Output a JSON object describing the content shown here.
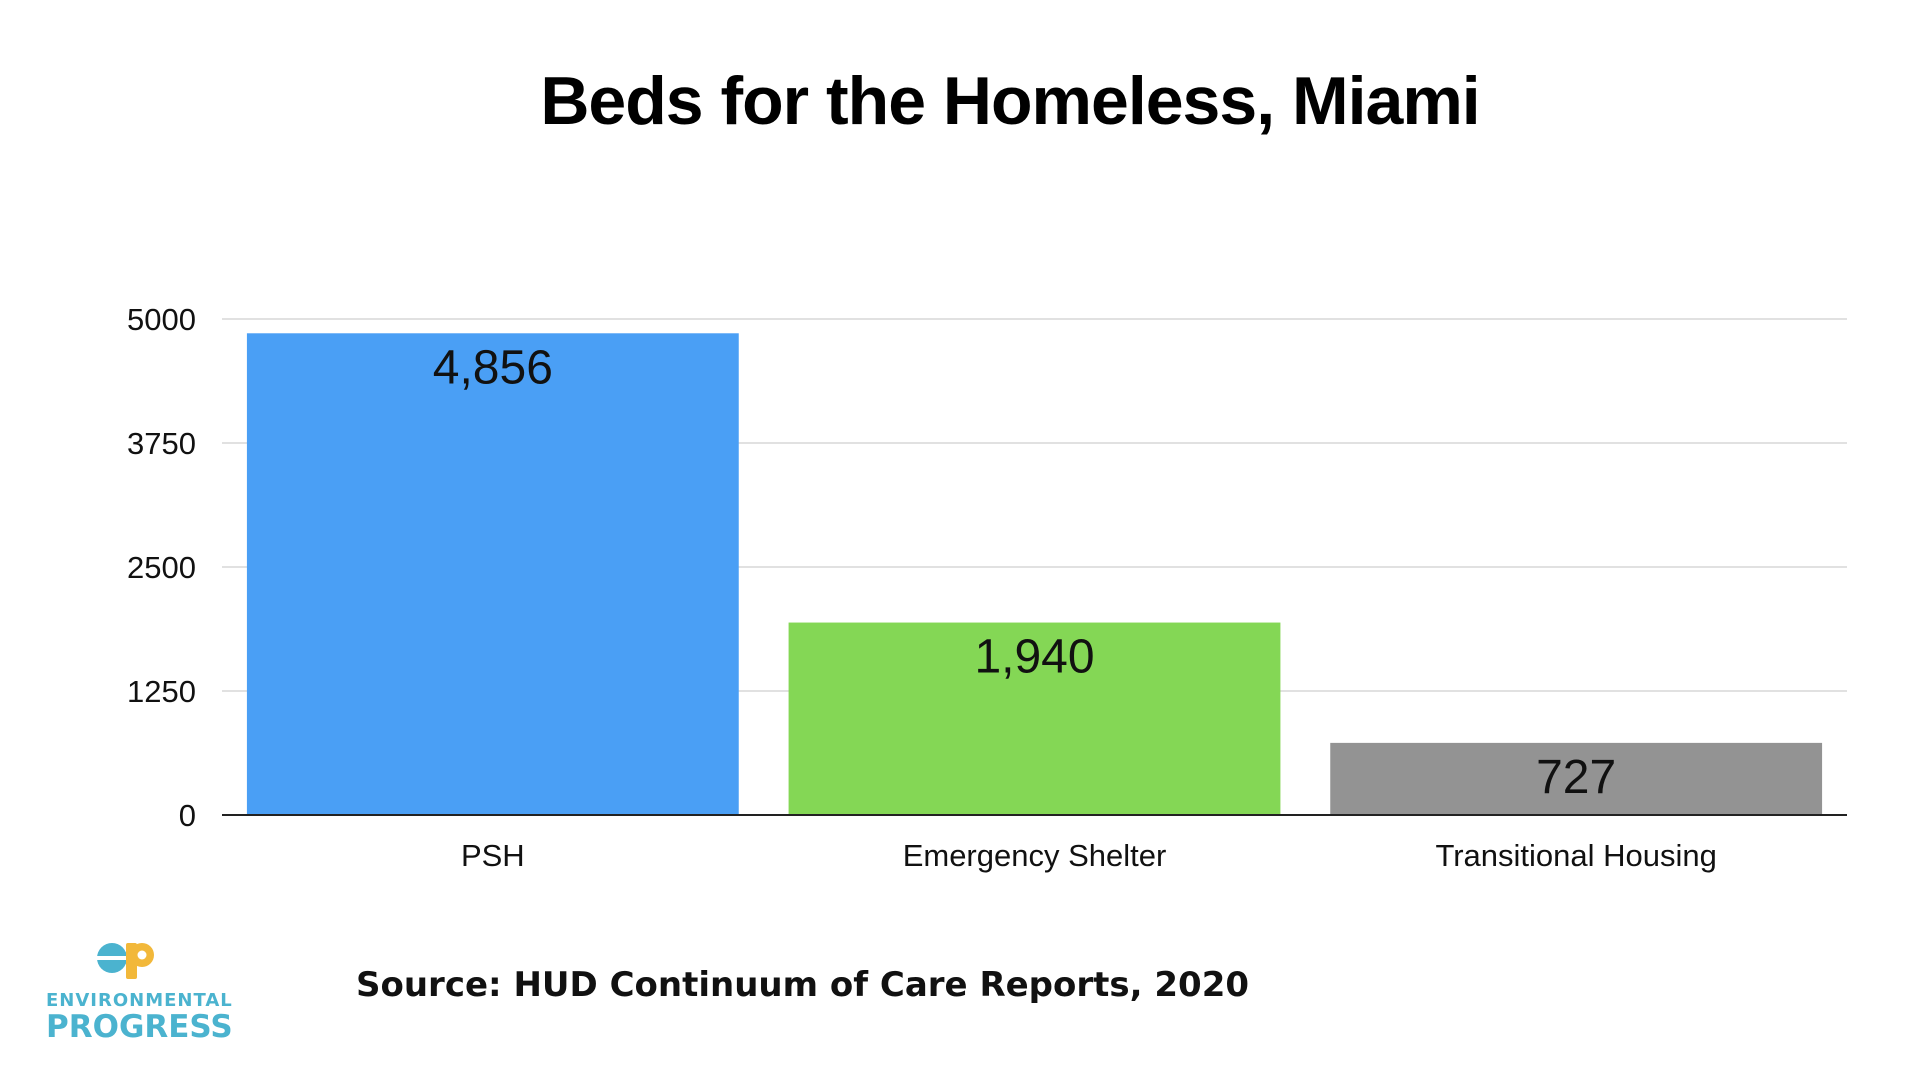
{
  "chart_data": {
    "type": "bar",
    "title": "Beds for the Homeless, Miami",
    "categories": [
      "PSH",
      "Emergency Shelter",
      "Transitional Housing"
    ],
    "values": [
      4856,
      1940,
      727
    ],
    "value_labels": [
      "4,856",
      "1,940",
      "727"
    ],
    "colors": [
      "#4a9ff5",
      "#84d755",
      "#939393"
    ],
    "y_ticks": [
      0,
      1250,
      2500,
      3750,
      5000
    ],
    "ylim": [
      0,
      5000
    ],
    "xlabel": "",
    "ylabel": "",
    "grid": true,
    "legend": "none"
  },
  "source_note": "Source: HUD Continuum of Care Reports, 2020",
  "logo": {
    "line1": "ENVIRONMENTAL",
    "line2": "PROGRESS",
    "colors": {
      "primary": "#4bb3cf",
      "accent": "#f2b83a"
    }
  }
}
